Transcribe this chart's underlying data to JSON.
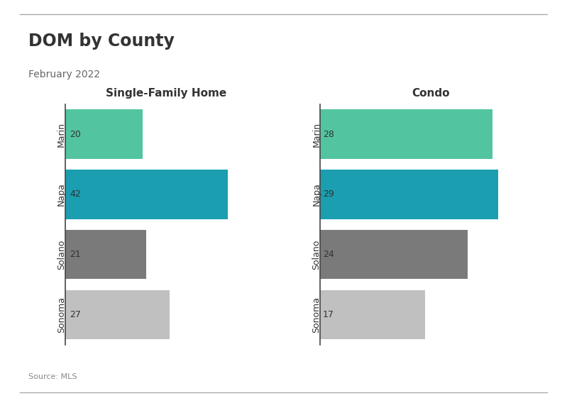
{
  "title": "DOM by County",
  "subtitle": "February 2022",
  "source": "Source: MLS",
  "left_title": "Single-Family Home",
  "right_title": "Condo",
  "categories": [
    "Marin",
    "Napa",
    "Solano",
    "Sonoma"
  ],
  "sfh_values": [
    20,
    42,
    21,
    27
  ],
  "condo_values": [
    28,
    29,
    24,
    17
  ],
  "sfh_colors": [
    "#52c4a0",
    "#1a9eb0",
    "#7a7a7a",
    "#c0c0c0"
  ],
  "condo_colors": [
    "#52c4a0",
    "#1a9eb0",
    "#7a7a7a",
    "#c0c0c0"
  ],
  "bar_height": 0.82,
  "background_color": "#ffffff",
  "text_color": "#333333",
  "axis_line_color": "#444444",
  "title_fontsize": 17,
  "subtitle_fontsize": 10,
  "category_fontsize": 9,
  "value_fontsize": 9,
  "subtitle_fontsize2": 11,
  "source_fontsize": 8,
  "xlim_sfh": [
    0,
    52
  ],
  "xlim_condo": [
    0,
    36
  ]
}
